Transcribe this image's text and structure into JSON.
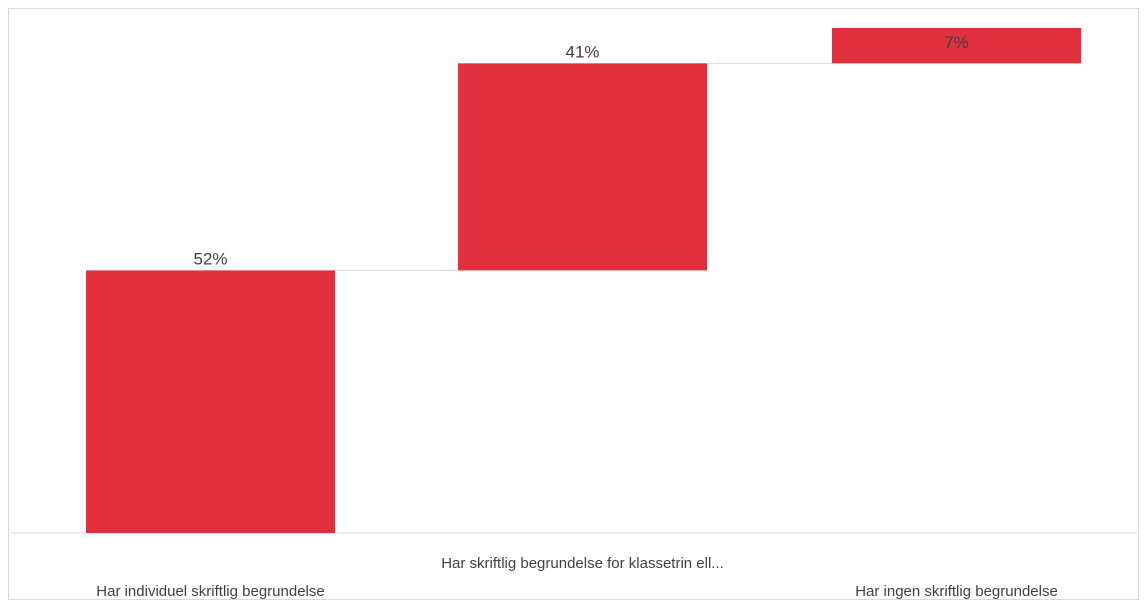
{
  "chart_data": {
    "type": "waterfall",
    "categories": [
      "Har individuel skriftlig begrundelse",
      "Har skriftlig begrundelse for klassetrin ell...",
      "Har ingen skriftlig begrundelse"
    ],
    "values": [
      52,
      41,
      7
    ],
    "data_labels": [
      "52%",
      "41%",
      "7%"
    ],
    "unit": "%",
    "ylim": [
      0,
      100
    ],
    "grid": false,
    "legend": "none",
    "colors": {
      "bar": "#e0303d",
      "connector": "#d9d9d9",
      "axis": "#d9d9d9",
      "text": "#404040"
    }
  }
}
